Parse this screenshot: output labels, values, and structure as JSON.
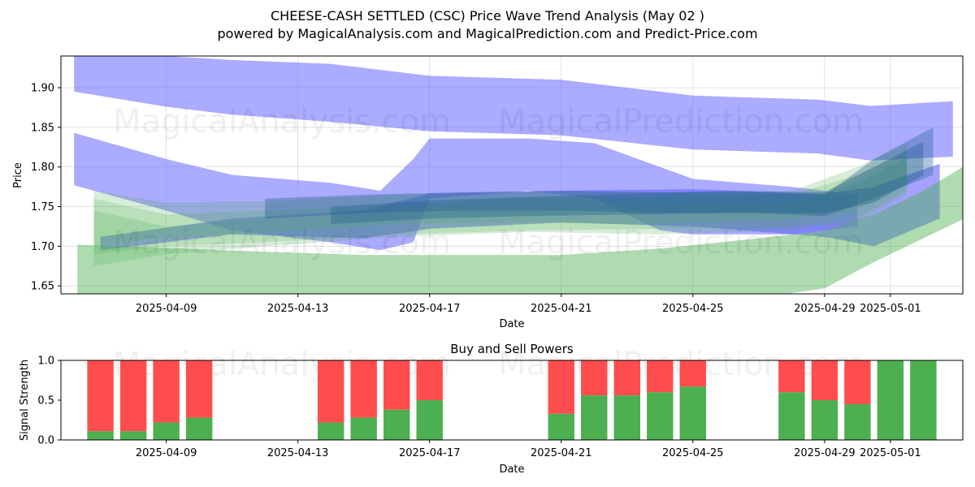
{
  "header": {
    "title": "CHEESE-CASH SETTLED (CSC) Price Wave Trend Analysis (May 02 )",
    "subtitle": "powered by MagicalAnalysis.com and MagicalPrediction.com and Predict-Price.com"
  },
  "watermarks": [
    "MagicalAnalysis.com",
    "MagicalPrediction.com"
  ],
  "colors": {
    "blue_band": "#6666ff",
    "dark_band": "#1f5f8b",
    "green_band": "#4caf50",
    "buy": "#4caf50",
    "sell": "#ff4d4d"
  },
  "chart_data": [
    {
      "type": "area",
      "title": "",
      "xlabel": "Date",
      "ylabel": "Price",
      "x_tick_labels": [
        "2025-04-09",
        "2025-04-13",
        "2025-04-17",
        "2025-04-21",
        "2025-04-25",
        "2025-04-29",
        "2025-05-01"
      ],
      "x_tick_days": [
        9,
        13,
        17,
        21,
        25,
        29,
        31
      ],
      "xlim_days": [
        5.8,
        33.2
      ],
      "ylim": [
        1.64,
        1.94
      ],
      "y_ticks": [
        1.65,
        1.7,
        1.75,
        1.8,
        1.85,
        1.9
      ],
      "y_tick_labels": [
        "1.65",
        "1.70",
        "1.75",
        "1.80",
        "1.85",
        "1.90"
      ],
      "grid": true,
      "bands": [
        {
          "name": "upper-blue-band",
          "color": "blue",
          "opacity": 0.55,
          "x": [
            6.2,
            9,
            11,
            14,
            17,
            21,
            25,
            28.8,
            30.4,
            32.9
          ],
          "lo": [
            1.895,
            1.876,
            1.866,
            1.857,
            1.845,
            1.84,
            1.822,
            1.817,
            1.808,
            1.813
          ],
          "hi": [
            1.945,
            1.94,
            1.935,
            1.93,
            1.915,
            1.91,
            1.89,
            1.885,
            1.877,
            1.883
          ]
        },
        {
          "name": "middle-blue-band",
          "color": "blue",
          "opacity": 0.55,
          "x": [
            6.2,
            9,
            11,
            14,
            15.5,
            16.5,
            17,
            20,
            22,
            24,
            25,
            28,
            30
          ],
          "lo": [
            1.777,
            1.745,
            1.72,
            1.705,
            1.695,
            1.705,
            1.76,
            1.77,
            1.76,
            1.72,
            1.715,
            1.715,
            1.725
          ],
          "hi": [
            1.843,
            1.81,
            1.79,
            1.78,
            1.77,
            1.81,
            1.836,
            1.836,
            1.83,
            1.8,
            1.785,
            1.775,
            1.765
          ]
        },
        {
          "name": "lower-blue-band",
          "color": "blue",
          "opacity": 0.6,
          "x": [
            7,
            11,
            15,
            17,
            21,
            25,
            29,
            30.5,
            32.5
          ],
          "lo": [
            1.695,
            1.715,
            1.71,
            1.722,
            1.73,
            1.725,
            1.712,
            1.7,
            1.735
          ],
          "hi": [
            1.712,
            1.735,
            1.745,
            1.767,
            1.77,
            1.772,
            1.766,
            1.775,
            1.804
          ]
        },
        {
          "name": "green-band-wide",
          "color": "green",
          "opacity": 0.45,
          "x": [
            6.3,
            9,
            12,
            15,
            17,
            21,
            24,
            27,
            29,
            30.5,
            32,
            33.2
          ],
          "lo": [
            1.56,
            1.59,
            1.6,
            1.61,
            1.62,
            1.625,
            1.63,
            1.635,
            1.647,
            1.68,
            1.71,
            1.734
          ],
          "hi": [
            1.702,
            1.698,
            1.693,
            1.689,
            1.689,
            1.689,
            1.697,
            1.71,
            1.72,
            1.74,
            1.77,
            1.8
          ]
        },
        {
          "name": "green-band-inner-1",
          "color": "green",
          "opacity": 0.22,
          "x": [
            6.8,
            9,
            12,
            16,
            20,
            24,
            28,
            30,
            31.5
          ],
          "lo": [
            1.69,
            1.7,
            1.705,
            1.715,
            1.72,
            1.722,
            1.725,
            1.735,
            1.77
          ],
          "hi": [
            1.76,
            1.74,
            1.745,
            1.752,
            1.762,
            1.762,
            1.765,
            1.79,
            1.82
          ]
        },
        {
          "name": "green-band-inner-2",
          "color": "green",
          "opacity": 0.22,
          "x": [
            6.8,
            9,
            12,
            16,
            20,
            24,
            28,
            30,
            31.5
          ],
          "lo": [
            1.675,
            1.69,
            1.7,
            1.712,
            1.718,
            1.715,
            1.72,
            1.73,
            1.765
          ],
          "hi": [
            1.745,
            1.725,
            1.735,
            1.745,
            1.75,
            1.75,
            1.755,
            1.78,
            1.812
          ]
        },
        {
          "name": "green-band-inner-3",
          "color": "green",
          "opacity": 0.22,
          "x": [
            6.8,
            9,
            12,
            16,
            20,
            24,
            28,
            30,
            31.5
          ],
          "lo": [
            1.7,
            1.712,
            1.718,
            1.728,
            1.73,
            1.728,
            1.735,
            1.745,
            1.78
          ],
          "hi": [
            1.77,
            1.755,
            1.757,
            1.765,
            1.768,
            1.768,
            1.77,
            1.8,
            1.83
          ]
        },
        {
          "name": "dark-blue-band-1",
          "color": "dark",
          "opacity": 0.35,
          "x": [
            12,
            15,
            18,
            21,
            24,
            27,
            29,
            30.5,
            32.3
          ],
          "lo": [
            1.735,
            1.742,
            1.745,
            1.745,
            1.742,
            1.742,
            1.738,
            1.76,
            1.79
          ],
          "hi": [
            1.76,
            1.765,
            1.768,
            1.77,
            1.768,
            1.768,
            1.765,
            1.81,
            1.85
          ]
        },
        {
          "name": "dark-blue-band-2",
          "color": "dark",
          "opacity": 0.35,
          "x": [
            14,
            17,
            20,
            23,
            26,
            29,
            30.5,
            32
          ],
          "lo": [
            1.728,
            1.735,
            1.738,
            1.74,
            1.742,
            1.742,
            1.755,
            1.79
          ],
          "hi": [
            1.75,
            1.758,
            1.762,
            1.766,
            1.77,
            1.768,
            1.8,
            1.832
          ]
        }
      ]
    },
    {
      "type": "bar",
      "title": "Buy and Sell Powers",
      "xlabel": "Date",
      "ylabel": "Signal Strength",
      "ylim": [
        0,
        1.0
      ],
      "y_ticks": [
        0.0,
        0.5,
        1.0
      ],
      "y_tick_labels": [
        "0.0",
        "0.5",
        "1.0"
      ],
      "x_tick_labels": [
        "2025-04-09",
        "2025-04-13",
        "2025-04-17",
        "2025-04-21",
        "2025-04-25",
        "2025-04-29",
        "2025-05-01"
      ],
      "x_tick_days": [
        9,
        13,
        17,
        21,
        25,
        29,
        31
      ],
      "xlim_days": [
        5.8,
        33.2
      ],
      "day": [
        7,
        8,
        9,
        10,
        14,
        15,
        16,
        17,
        21,
        22,
        23,
        24,
        25,
        28,
        29,
        30,
        31,
        32
      ],
      "series": [
        {
          "name": "Buy Power",
          "values": [
            0.11,
            0.11,
            0.22,
            0.28,
            0.22,
            0.28,
            0.38,
            0.5,
            0.33,
            0.56,
            0.56,
            0.6,
            0.67,
            0.6,
            0.5,
            0.45,
            1.0,
            1.0
          ]
        },
        {
          "name": "Sell Power",
          "values": [
            0.89,
            0.89,
            0.78,
            0.72,
            0.78,
            0.72,
            0.62,
            0.5,
            0.67,
            0.44,
            0.44,
            0.4,
            0.33,
            0.4,
            0.5,
            0.55,
            0.0,
            0.0
          ]
        }
      ]
    }
  ]
}
